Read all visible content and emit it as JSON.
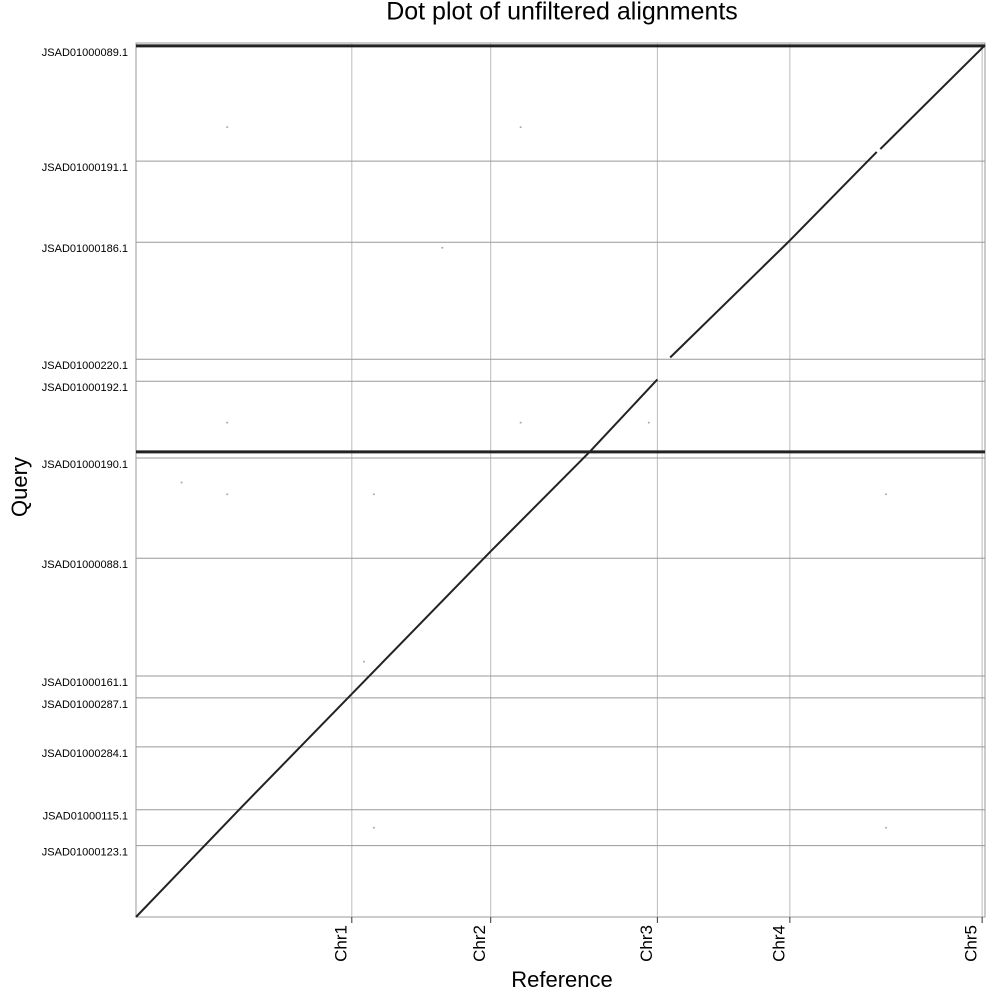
{
  "chart_data": {
    "type": "dotplot",
    "title": "Dot plot of unfiltered alignments",
    "x_label": "Reference",
    "y_label": "Query",
    "xlim": [
      0,
      119.2
    ],
    "ylim": [
      0,
      119.5
    ],
    "xticks": [
      {
        "value": 30.3,
        "label": "Chr1"
      },
      {
        "value": 49.8,
        "label": "Chr2"
      },
      {
        "value": 73.2,
        "label": "Chr3"
      },
      {
        "value": 91.8,
        "label": "Chr4"
      },
      {
        "value": 118.8,
        "label": "Chr5"
      }
    ],
    "yticks": [
      {
        "value": 8.8,
        "label": "JSAD01000123.1"
      },
      {
        "value": 13.7,
        "label": "JSAD01000115.1"
      },
      {
        "value": 22.3,
        "label": "JSAD01000284.1"
      },
      {
        "value": 29.0,
        "label": "JSAD01000287.1"
      },
      {
        "value": 32.0,
        "label": "JSAD01000161.1"
      },
      {
        "value": 48.1,
        "label": "JSAD01000088.1"
      },
      {
        "value": 61.8,
        "label": "JSAD01000190.1"
      },
      {
        "value": 72.3,
        "label": "JSAD01000192.1"
      },
      {
        "value": 75.3,
        "label": "JSAD01000220.1"
      },
      {
        "value": 91.3,
        "label": "JSAD01000186.1"
      },
      {
        "value": 102.4,
        "label": "JSAD01000191.1"
      },
      {
        "value": 118.1,
        "label": "JSAD01000089.1"
      }
    ],
    "grid": true,
    "color": "#222222",
    "segments": [
      {
        "x": [
          0,
          15.0,
          30.3
        ],
        "y": [
          0,
          15.2,
          30.5
        ]
      },
      {
        "x": [
          30.3,
          49.8
        ],
        "y": [
          30.5,
          50.0
        ]
      },
      {
        "x": [
          49.8,
          63.7
        ],
        "y": [
          50.0,
          63.6
        ]
      },
      {
        "x": [
          63.7,
          73.2
        ],
        "y": [
          63.6,
          73.5
        ]
      },
      {
        "x": [
          75.0,
          91.8
        ],
        "y": [
          76.5,
          92.5
        ]
      },
      {
        "x": [
          91.8,
          104.0
        ],
        "y": [
          92.5,
          104.6
        ]
      },
      {
        "x": [
          104.5,
          119.2
        ],
        "y": [
          105.0,
          119.2
        ]
      },
      {
        "x": [
          0,
          119.2
        ],
        "y": [
          63.6,
          63.6
        ]
      },
      {
        "x": [
          0,
          119.2
        ],
        "y": [
          119.1,
          119.1
        ]
      }
    ],
    "points": {
      "x": [
        12.8,
        54.0,
        6.4,
        33.4,
        12.8,
        43.0,
        54.0,
        12.8,
        33.4,
        72.0,
        105.3,
        32.0,
        105.3
      ],
      "y": [
        108.0,
        108.0,
        59.4,
        57.8,
        67.6,
        91.5,
        67.6,
        57.8,
        12.2,
        67.6,
        57.8,
        34.9,
        12.2
      ]
    }
  }
}
